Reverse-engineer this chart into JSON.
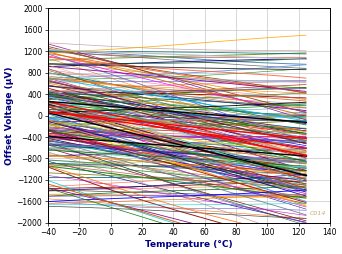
{
  "xlabel": "Temperature (°C)",
  "ylabel": "Offset Voltage (µV)",
  "xlim": [
    -40,
    140
  ],
  "ylim": [
    -2000,
    2000
  ],
  "xticks": [
    -40,
    -20,
    0,
    20,
    40,
    60,
    80,
    100,
    120,
    140
  ],
  "yticks": [
    -2000,
    -1600,
    -1200,
    -800,
    -400,
    0,
    400,
    800,
    1200,
    1600,
    2000
  ],
  "temp_start": -40,
  "temp_end": 125,
  "watermark": "C014",
  "n_lines": 200,
  "seed": 7,
  "colors": [
    "#FF0000",
    "#CC0000",
    "#990000",
    "#880000",
    "#0000CC",
    "#000088",
    "#0000FF",
    "#0033AA",
    "#006600",
    "#008800",
    "#009900",
    "#005500",
    "#007700",
    "#000000",
    "#222222",
    "#333333",
    "#FF6600",
    "#CC5500",
    "#FF8800",
    "#DD6600",
    "#800000",
    "#8B0000",
    "#A00000",
    "#000080",
    "#00008B",
    "#001080",
    "#006400",
    "#228B22",
    "#2E8B57",
    "#FF00FF",
    "#CC00CC",
    "#AA00AA",
    "#008080",
    "#007070",
    "#006060",
    "#808000",
    "#666600",
    "#777700",
    "#800080",
    "#660066",
    "#770077",
    "#A52A2A",
    "#8B4513",
    "#CD853F",
    "#D2691E",
    "#B8860B",
    "#DAA520",
    "#4B0082",
    "#483D8B",
    "#6A5ACD",
    "#7B68EE",
    "#20B2AA",
    "#5F9EA0",
    "#4682B4",
    "#DC143C",
    "#C71585",
    "#DB7093",
    "#556B2F",
    "#6B8E23",
    "#9ACD32",
    "#2F4F4F",
    "#708090",
    "#696969",
    "#8B008B",
    "#9400D3",
    "#8A2BE2",
    "#FF4500",
    "#FF6347",
    "#FF7F50",
    "#1E90FF",
    "#4169E1",
    "#6495ED",
    "#3CB371",
    "#66CDAA",
    "#8FBC8F",
    "#D2B48C",
    "#BC8F8F",
    "#F4A460",
    "#C0C0C0",
    "#A9A9A9",
    "#808080",
    "#B22222",
    "#CD5C5C",
    "#F08080",
    "#00CED1",
    "#40E0D0",
    "#00BFFF",
    "#FFD700",
    "#FFA500",
    "#FF8C00"
  ]
}
